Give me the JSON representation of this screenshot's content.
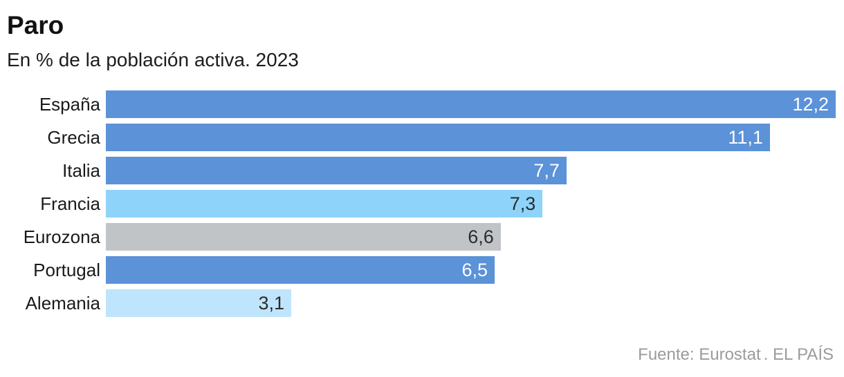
{
  "header": {
    "title": "Paro",
    "subtitle": "En % de la población activa. 2023"
  },
  "footer": {
    "source": "Fuente: Eurostat",
    "brand": ". EL PAÍS"
  },
  "colors": {
    "blue": "#5b92d8",
    "light_blue": "#8ed3fa",
    "pale_blue": "#bfe5fc",
    "gray": "#c1c4c7",
    "value_on_dark": "#ffffff",
    "value_on_light": "#2b2b2b",
    "label_color": "#1a1a1a",
    "footer_color": "#9b9b9b"
  },
  "chart_data": {
    "type": "bar",
    "orientation": "horizontal",
    "title": "Paro",
    "subtitle": "En % de la población activa. 2023",
    "xlabel": "",
    "ylabel": "",
    "xlim": [
      0,
      12.2
    ],
    "grid": false,
    "legend": false,
    "categories": [
      "España",
      "Grecia",
      "Italia",
      "Francia",
      "Eurozona",
      "Portugal",
      "Alemania"
    ],
    "values": [
      12.2,
      11.1,
      7.7,
      7.3,
      6.6,
      6.5,
      3.1
    ],
    "bars": [
      {
        "label": "España",
        "value": 12.2,
        "display": "12,2",
        "bar_color": "#5b92d8",
        "value_color": "#ffffff"
      },
      {
        "label": "Grecia",
        "value": 11.1,
        "display": "11,1",
        "bar_color": "#5b92d8",
        "value_color": "#ffffff"
      },
      {
        "label": "Italia",
        "value": 7.7,
        "display": "7,7",
        "bar_color": "#5b92d8",
        "value_color": "#ffffff"
      },
      {
        "label": "Francia",
        "value": 7.3,
        "display": "7,3",
        "bar_color": "#8ed3fa",
        "value_color": "#2b2b2b"
      },
      {
        "label": "Eurozona",
        "value": 6.6,
        "display": "6,6",
        "bar_color": "#c1c4c7",
        "value_color": "#2b2b2b"
      },
      {
        "label": "Portugal",
        "value": 6.5,
        "display": "6,5",
        "bar_color": "#5b92d8",
        "value_color": "#ffffff"
      },
      {
        "label": "Alemania",
        "value": 3.1,
        "display": "3,1",
        "bar_color": "#bfe5fc",
        "value_color": "#2b2b2b"
      }
    ],
    "source": "Fuente: Eurostat",
    "credit": "EL PAÍS"
  }
}
